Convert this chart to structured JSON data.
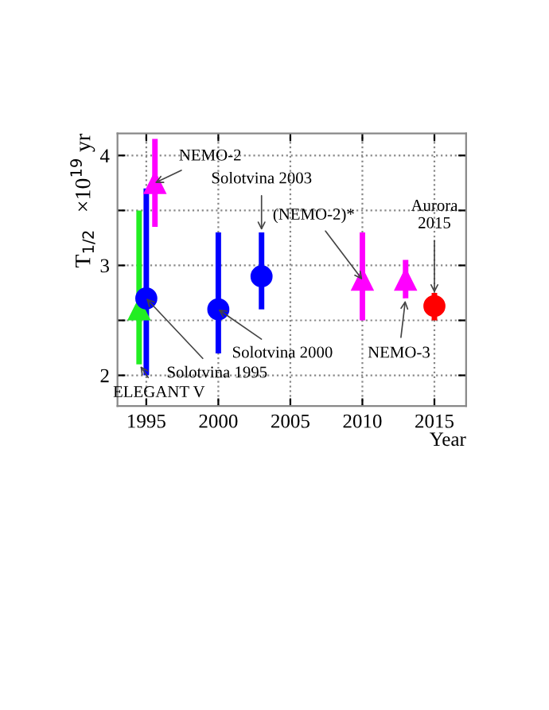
{
  "chart_data": {
    "type": "scatter",
    "xlabel": "Year",
    "ylabel": "T$_{1/2}$   ×10$^{19}$ yr",
    "xlim": [
      1993,
      2017.2
    ],
    "ylim": [
      1.72,
      4.2
    ],
    "xticks": [
      1995,
      2000,
      2005,
      2010,
      2015
    ],
    "yticks": [
      2,
      {
        "value": 2.5,
        "label": null
      },
      3,
      {
        "value": 3.5,
        "label": null
      },
      4
    ],
    "grid": true,
    "series": [
      {
        "color": "#22ee22",
        "marker": "triangle",
        "x": [
          1994.5
        ],
        "values": [
          2.6
        ],
        "errors": [
          [
            2.1,
            3.5
          ]
        ]
      },
      {
        "color": "#0000ff",
        "marker": "circle",
        "x": [
          1995,
          2000,
          2003
        ],
        "values": [
          2.7,
          2.6,
          2.9
        ],
        "errors": [
          [
            2.0,
            3.7
          ],
          [
            2.2,
            3.3
          ],
          [
            2.6,
            3.3
          ]
        ]
      },
      {
        "color": "#ff00ff",
        "marker": "triangle",
        "x": [
          1995.6,
          2010,
          2013
        ],
        "values": [
          3.75,
          2.87,
          2.87
        ],
        "errors": [
          [
            3.35,
            4.15
          ],
          [
            2.5,
            3.3
          ],
          [
            2.7,
            3.05
          ]
        ]
      },
      {
        "color": "#ff0000",
        "marker": "circle",
        "x": [
          2015
        ],
        "values": [
          2.63
        ],
        "errors": [
          [
            2.5,
            2.75
          ]
        ]
      }
    ],
    "annotations": [
      {
        "text": "ELEGANT V",
        "x": 1994.5,
        "y": 2.1
      },
      {
        "text": "Solotvina 1995",
        "x": 1995,
        "y": 2.7
      },
      {
        "text": "NEMO-2",
        "x": 1995.6,
        "y": 3.75
      },
      {
        "text": "Solotvina 2000",
        "x": 2000,
        "y": 2.6
      },
      {
        "text": "Solotvina 2003",
        "x": 2003,
        "y": 3.3
      },
      {
        "text": "(NEMO-2)*",
        "x": 2010,
        "y": 2.87
      },
      {
        "text": "NEMO-3",
        "x": 2013,
        "y": 2.7
      },
      {
        "text": "Aurora\n2015",
        "x": 2015,
        "y": 2.75
      }
    ]
  }
}
